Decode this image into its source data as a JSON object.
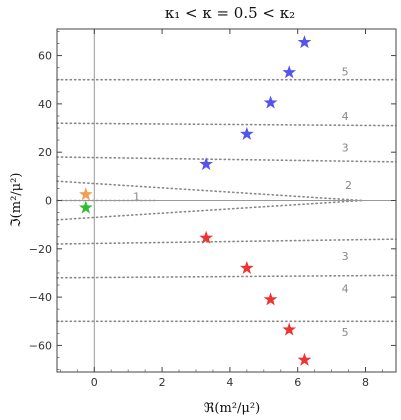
{
  "chart_data": {
    "type": "scatter",
    "title": "κ₁ < κ = 0.5 < κ₂",
    "xlabel": "ℜ(m²/μ²)",
    "ylabel": "ℑ(m²/μ²)",
    "xlim": [
      -1.1,
      8.9
    ],
    "ylim": [
      -71,
      71
    ],
    "xticks": [
      0,
      2,
      4,
      6,
      8
    ],
    "yticks": [
      -60,
      -40,
      -20,
      0,
      20,
      40,
      60
    ],
    "grid": false,
    "series": [
      {
        "color": "#5555ee",
        "marker": "star",
        "x": [
          3.3,
          4.5,
          5.2,
          5.75,
          6.2
        ],
        "y": [
          15,
          27.5,
          40.5,
          53,
          65.5
        ]
      },
      {
        "color": "#ee3333",
        "marker": "star",
        "x": [
          3.3,
          4.5,
          5.2,
          5.75,
          6.2
        ],
        "y": [
          -15.5,
          -28,
          -41,
          -53.5,
          -66
        ]
      },
      {
        "color": "#f0a050",
        "marker": "star",
        "x": [
          -0.25
        ],
        "y": [
          2.5
        ]
      },
      {
        "color": "#33bb33",
        "marker": "star",
        "x": [
          -0.25
        ],
        "y": [
          -3
        ]
      }
    ],
    "dotted_lines": [
      {
        "label": "1",
        "x_from": -1.1,
        "x_to": 1.8,
        "y_from": 0,
        "y_to": 0,
        "label_x": 1.25,
        "label_y": 1.6
      },
      {
        "label": "2",
        "x_from": -1.1,
        "x_to": 7.9,
        "y_from": 8,
        "y_to": 0,
        "label_x": 7.5,
        "label_y": 6.5
      },
      {
        "label": "",
        "x_from": -1.1,
        "x_to": 7.9,
        "y_from": -8,
        "y_to": 0,
        "label_x": null,
        "label_y": null
      },
      {
        "label": "3",
        "x_from": -1.1,
        "x_to": 8.9,
        "y_from": 18,
        "y_to": 16,
        "label_x": 7.4,
        "label_y": 22
      },
      {
        "label": "3",
        "x_from": -1.1,
        "x_to": 8.9,
        "y_from": -18,
        "y_to": -16,
        "label_x": 7.4,
        "label_y": -23
      },
      {
        "label": "4",
        "x_from": -1.1,
        "x_to": 8.9,
        "y_from": 32,
        "y_to": 31,
        "label_x": 7.4,
        "label_y": 35
      },
      {
        "label": "4",
        "x_from": -1.1,
        "x_to": 8.9,
        "y_from": -32,
        "y_to": -31,
        "label_x": 7.4,
        "label_y": -36.5
      },
      {
        "label": "5",
        "x_from": -1.1,
        "x_to": 8.9,
        "y_from": 50,
        "y_to": 50,
        "label_x": 7.4,
        "label_y": 53.5
      },
      {
        "label": "5",
        "x_from": -1.1,
        "x_to": 8.9,
        "y_from": -50,
        "y_to": -50,
        "label_x": 7.4,
        "label_y": -54.5
      }
    ]
  }
}
